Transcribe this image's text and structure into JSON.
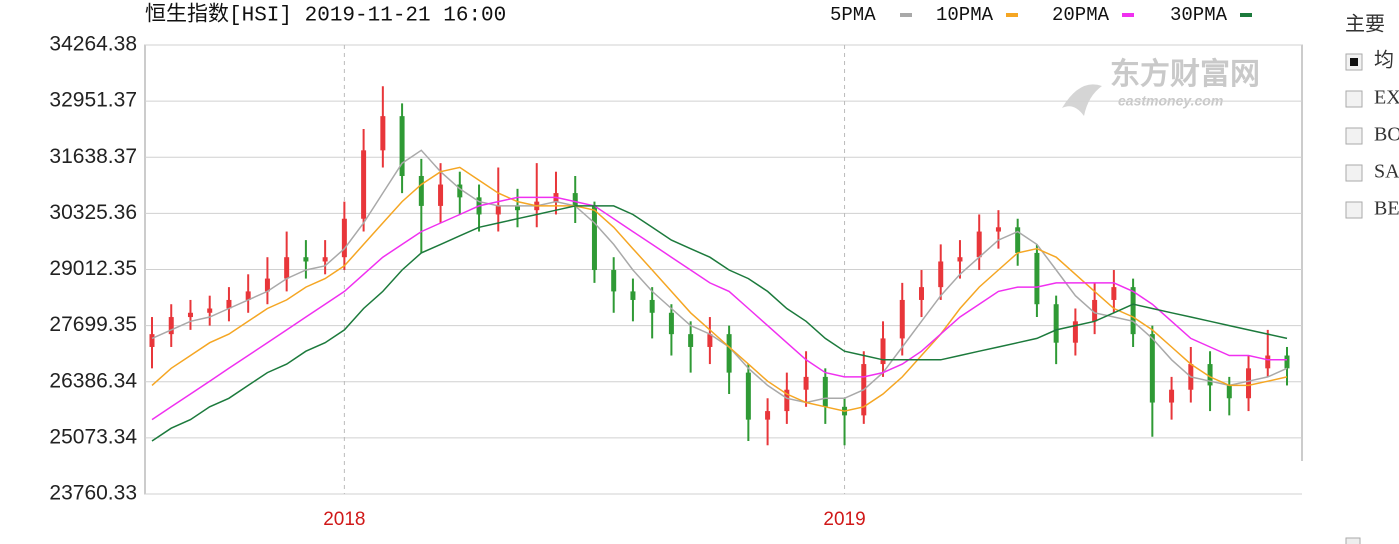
{
  "chart_data": {
    "type": "candlestick",
    "title": "恒生指数[HSI] 2019-11-21 16:00",
    "categories": [
      null,
      null,
      null,
      null,
      null,
      null,
      null,
      null,
      null,
      null,
      "2018",
      null,
      null,
      null,
      null,
      null,
      null,
      null,
      null,
      null,
      null,
      null,
      null,
      null,
      null,
      null,
      null,
      null,
      null,
      null,
      null,
      null,
      null,
      null,
      null,
      null,
      "2019",
      null,
      null,
      null,
      null,
      null,
      null,
      null,
      null,
      null,
      null,
      null,
      null,
      null,
      null,
      null,
      null,
      null,
      null,
      null,
      null,
      null,
      null,
      null
    ],
    "open": [
      27200,
      27500,
      27900,
      28000,
      28100,
      28300,
      28500,
      28800,
      29300,
      29200,
      29300,
      30200,
      31800,
      32600,
      31200,
      30500,
      31000,
      30700,
      30300,
      30500,
      30400,
      30600,
      30800,
      30500,
      29000,
      28500,
      28300,
      28000,
      27500,
      27200,
      27500,
      26600,
      25500,
      25700,
      26200,
      26500,
      25800,
      25600,
      26800,
      27400,
      28300,
      28600,
      29200,
      29300,
      29900,
      30000,
      29400,
      28200,
      27300,
      27800,
      28300,
      28600,
      27500,
      25900,
      26200,
      26800,
      26300,
      26000,
      26700,
      27000
    ],
    "high": [
      27900,
      28200,
      28300,
      28400,
      28600,
      28900,
      29300,
      29900,
      29700,
      29700,
      30600,
      32300,
      33300,
      32900,
      31600,
      31500,
      31300,
      31000,
      31400,
      30900,
      31500,
      31300,
      31200,
      30600,
      29300,
      28800,
      28600,
      28200,
      27800,
      27900,
      27700,
      26800,
      26000,
      26600,
      27100,
      26700,
      26000,
      27100,
      27800,
      28700,
      29000,
      29600,
      29700,
      30300,
      30400,
      30200,
      29600,
      28400,
      28100,
      28700,
      29000,
      28800,
      27700,
      26500,
      27200,
      27100,
      26500,
      27000,
      27600,
      27200
    ],
    "low": [
      26700,
      27200,
      27600,
      27700,
      27800,
      28000,
      28200,
      28500,
      28800,
      28900,
      29000,
      29900,
      31400,
      30800,
      29400,
      30100,
      30300,
      29900,
      29900,
      30000,
      30000,
      30300,
      30100,
      28700,
      28000,
      27800,
      27400,
      27000,
      26600,
      26800,
      26100,
      25000,
      24900,
      25400,
      25800,
      25400,
      24900,
      25400,
      26500,
      27000,
      27900,
      28300,
      28800,
      29000,
      29500,
      29100,
      27900,
      26800,
      27000,
      27500,
      28000,
      27200,
      25100,
      25500,
      25900,
      25700,
      25600,
      25700,
      26500,
      26300
    ],
    "close": [
      27500,
      27900,
      28000,
      28100,
      28300,
      28500,
      28800,
      29300,
      29200,
      29300,
      30200,
      31800,
      32600,
      31200,
      30500,
      31000,
      30700,
      30300,
      30500,
      30400,
      30600,
      30800,
      30500,
      29000,
      28500,
      28300,
      28000,
      27500,
      27200,
      27500,
      26600,
      25500,
      25700,
      26200,
      26500,
      25800,
      25600,
      26800,
      27400,
      28300,
      28600,
      29200,
      29300,
      29900,
      30000,
      29400,
      28200,
      27300,
      27800,
      28300,
      28600,
      27500,
      25900,
      26200,
      26800,
      26300,
      26000,
      26700,
      27000,
      26700
    ],
    "up_color": "#e8363a",
    "down_color": "#2f9a35",
    "series": [
      {
        "name": "5PMA",
        "color": "#a9a9a9",
        "values": [
          27400,
          27600,
          27800,
          27900,
          28100,
          28300,
          28500,
          28800,
          29000,
          29100,
          29500,
          30100,
          30800,
          31500,
          31800,
          31300,
          30900,
          30600,
          30500,
          30500,
          30500,
          30600,
          30500,
          30100,
          29600,
          29000,
          28500,
          28100,
          27700,
          27500,
          27200,
          26700,
          26300,
          26000,
          25900,
          26000,
          26000,
          26200,
          26600,
          27200,
          27800,
          28400,
          28900,
          29300,
          29700,
          29900,
          29600,
          29000,
          28400,
          28000,
          27900,
          27800,
          27400,
          26900,
          26500,
          26400,
          26300,
          26400,
          26500,
          26700
        ]
      },
      {
        "name": "10PMA",
        "color": "#f5a623",
        "values": [
          26300,
          26700,
          27000,
          27300,
          27500,
          27800,
          28100,
          28300,
          28600,
          28800,
          29100,
          29600,
          30100,
          30600,
          31000,
          31300,
          31400,
          31100,
          30800,
          30600,
          30500,
          30500,
          30500,
          30400,
          30000,
          29500,
          29000,
          28500,
          28000,
          27600,
          27200,
          26800,
          26400,
          26100,
          25900,
          25800,
          25700,
          25800,
          26100,
          26500,
          27000,
          27500,
          28100,
          28600,
          29000,
          29400,
          29500,
          29300,
          28900,
          28500,
          28100,
          27900,
          27600,
          27200,
          26800,
          26500,
          26300,
          26300,
          26400,
          26500
        ]
      },
      {
        "name": "20PMA",
        "color": "#f030f0",
        "values": [
          25500,
          25800,
          26100,
          26400,
          26700,
          27000,
          27300,
          27600,
          27900,
          28200,
          28500,
          28900,
          29300,
          29600,
          29900,
          30100,
          30300,
          30500,
          30600,
          30700,
          30700,
          30700,
          30600,
          30500,
          30200,
          29900,
          29600,
          29300,
          29000,
          28700,
          28500,
          28100,
          27700,
          27300,
          26900,
          26600,
          26500,
          26500,
          26600,
          26800,
          27100,
          27500,
          27900,
          28200,
          28500,
          28600,
          28600,
          28700,
          28700,
          28700,
          28700,
          28500,
          28200,
          27800,
          27400,
          27200,
          27000,
          27000,
          26900,
          26900
        ]
      },
      {
        "name": "30PMA",
        "color": "#1c7a3c",
        "values": [
          25000,
          25300,
          25500,
          25800,
          26000,
          26300,
          26600,
          26800,
          27100,
          27300,
          27600,
          28100,
          28500,
          29000,
          29400,
          29600,
          29800,
          30000,
          30100,
          30200,
          30300,
          30400,
          30500,
          30500,
          30500,
          30300,
          30000,
          29700,
          29500,
          29300,
          29000,
          28800,
          28500,
          28100,
          27800,
          27400,
          27100,
          27000,
          26900,
          26900,
          26900,
          26900,
          27000,
          27100,
          27200,
          27300,
          27400,
          27600,
          27700,
          27800,
          28000,
          28200,
          28100,
          28000,
          27900,
          27800,
          27700,
          27600,
          27500,
          27400
        ]
      }
    ],
    "ylim": [
      23760.33,
      34264.38
    ],
    "yticks": [
      23760.33,
      25073.34,
      26386.34,
      27699.35,
      29012.35,
      30325.36,
      31638.37,
      32951.37,
      34264.38
    ],
    "grid": true,
    "watermark": {
      "title": "东方财富网",
      "subtitle": "eastmoney.com"
    }
  },
  "panel": {
    "title": "主要",
    "options": [
      "均",
      "EX",
      "BO",
      "SA",
      "BE"
    ],
    "checked": [
      true,
      false,
      false,
      false,
      false
    ]
  }
}
